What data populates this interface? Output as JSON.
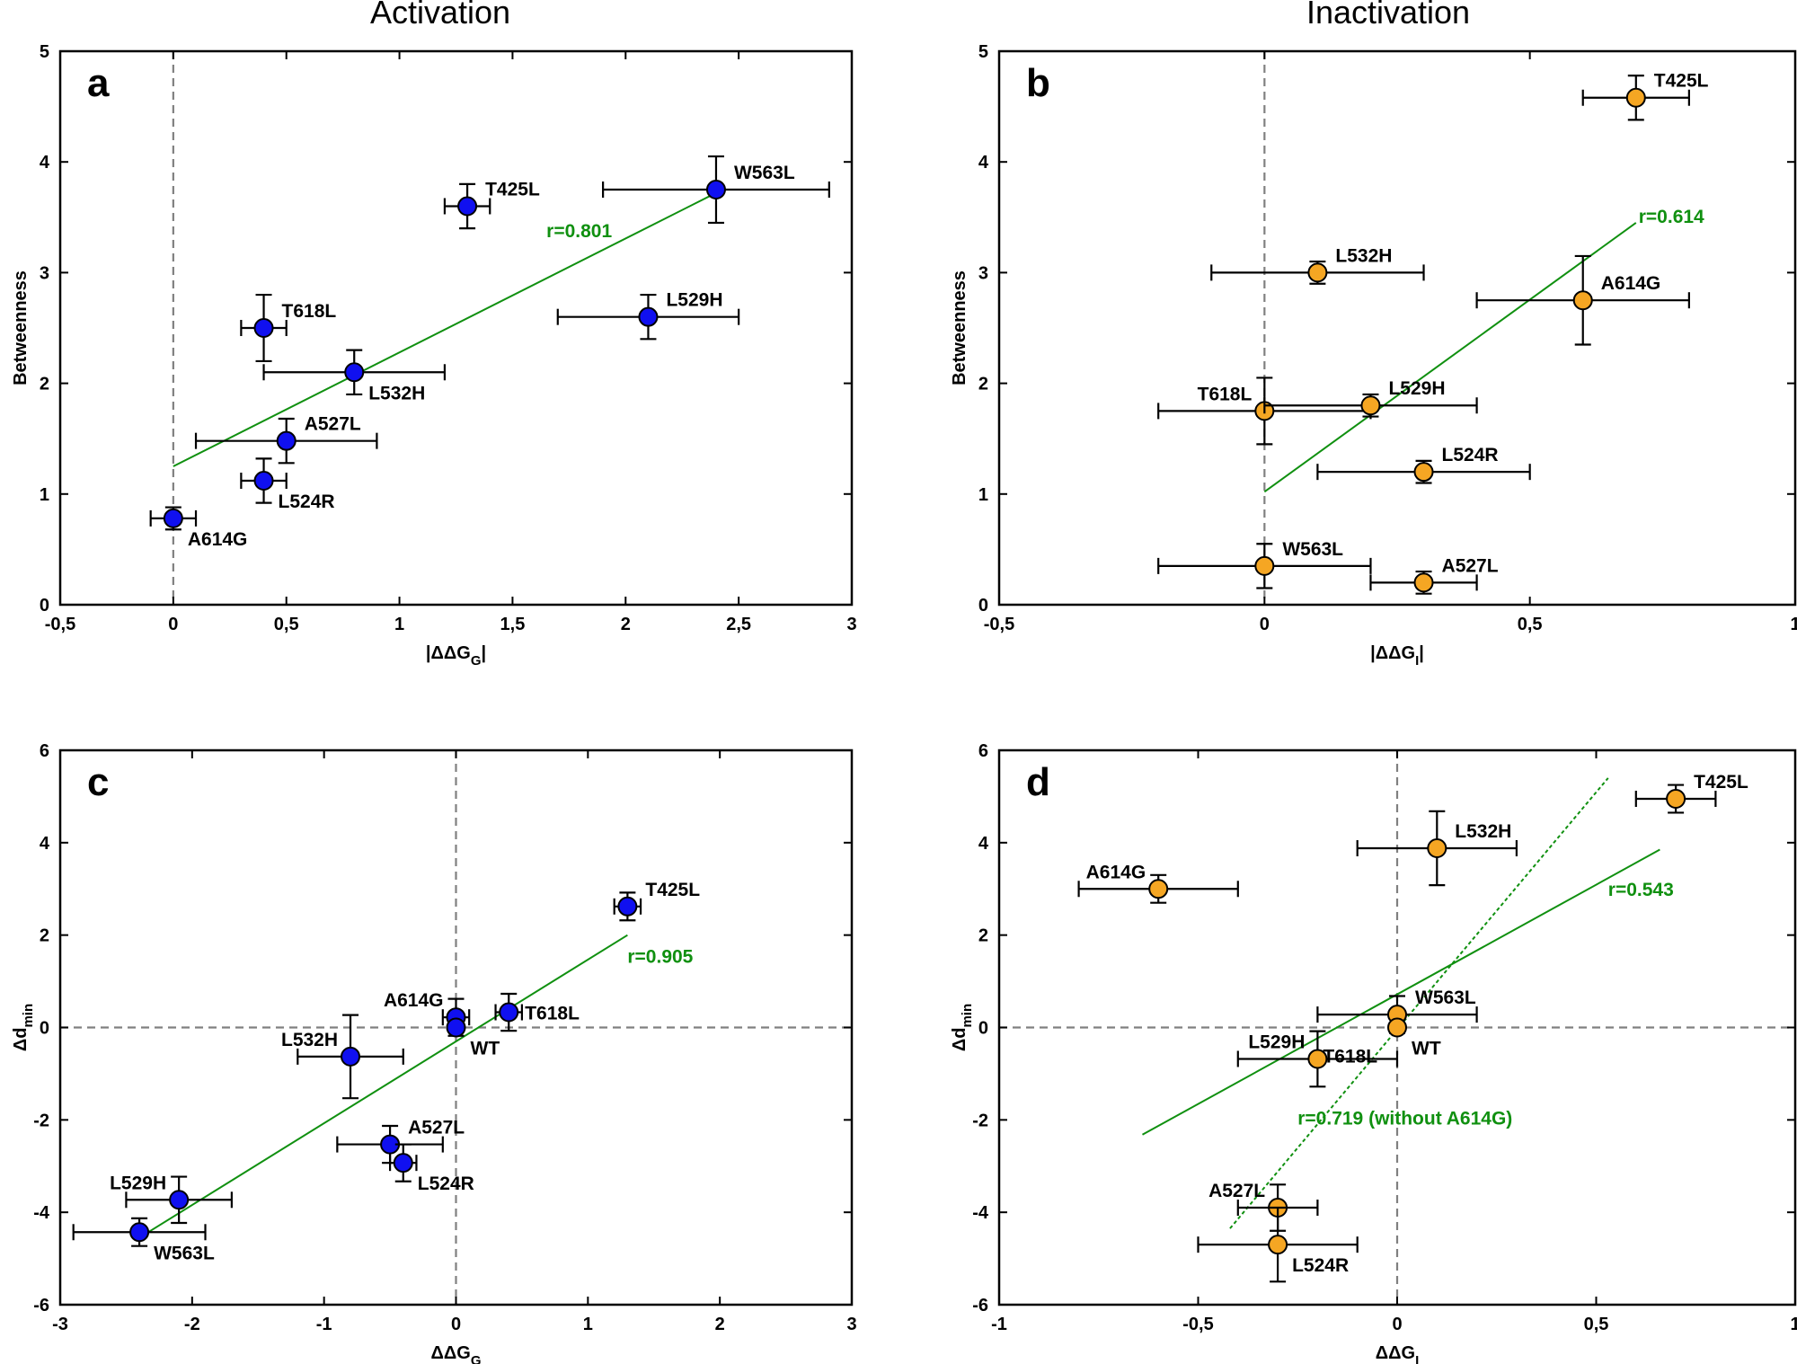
{
  "column_titles": {
    "left": "Activation",
    "right": "Inactivation"
  },
  "colors": {
    "blue": "#1010f0",
    "orange": "#f5a623",
    "green": "#109010",
    "zero_line": "#808080"
  },
  "chart_data": [
    {
      "type": "scatter",
      "panel": "a",
      "column": "left",
      "row": "top",
      "xlabel": "|ΔΔG",
      "xlabel_sub": "G",
      "xlabel_suffix": "|",
      "ylabel": "Betweenness",
      "ylabel_sub": "",
      "xlim": [
        -0.5,
        3
      ],
      "ylim": [
        0,
        5
      ],
      "xticks": [
        -0.5,
        0,
        0.5,
        1,
        1.5,
        2,
        2.5,
        3
      ],
      "xtick_labels": [
        "-0,5",
        "0",
        "0,5",
        "1",
        "1,5",
        "2",
        "2,5",
        "3"
      ],
      "yticks": [
        0,
        1,
        2,
        3,
        4,
        5
      ],
      "ytick_labels": [
        "0",
        "1",
        "2",
        "3",
        "4",
        "5"
      ],
      "zero_lines": {
        "vertical": true,
        "horizontal": false
      },
      "marker_color": "#1010f0",
      "points": [
        {
          "label": "W563L",
          "x": 2.4,
          "y": 3.75,
          "xerr": 0.5,
          "yerr": 0.3,
          "label_pos": "ne"
        },
        {
          "label": "T425L",
          "x": 1.3,
          "y": 3.6,
          "xerr": 0.1,
          "yerr": 0.2,
          "label_pos": "ne"
        },
        {
          "label": "L529H",
          "x": 2.1,
          "y": 2.6,
          "xerr": 0.4,
          "yerr": 0.2,
          "label_pos": "ne"
        },
        {
          "label": "T618L",
          "x": 0.4,
          "y": 2.5,
          "xerr": 0.1,
          "yerr": 0.3,
          "label_pos": "ne"
        },
        {
          "label": "L532H",
          "x": 0.8,
          "y": 2.1,
          "xerr": 0.4,
          "yerr": 0.2,
          "label_pos": "se"
        },
        {
          "label": "A527L",
          "x": 0.5,
          "y": 1.48,
          "xerr": 0.4,
          "yerr": 0.2,
          "label_pos": "ne"
        },
        {
          "label": "L524R",
          "x": 0.4,
          "y": 1.12,
          "xerr": 0.1,
          "yerr": 0.2,
          "label_pos": "se"
        },
        {
          "label": "A614G",
          "x": 0.0,
          "y": 0.78,
          "xerr": 0.1,
          "yerr": 0.1,
          "label_pos": "se"
        }
      ],
      "fits": [
        {
          "x": [
            0,
            2.4
          ],
          "y": [
            1.25,
            3.72
          ],
          "style": "solid",
          "label": "r=0.801",
          "label_at": [
            1.65,
            3.32
          ]
        }
      ]
    },
    {
      "type": "scatter",
      "panel": "b",
      "column": "right",
      "row": "top",
      "xlabel": "|ΔΔG",
      "xlabel_sub": "I",
      "xlabel_suffix": "|",
      "ylabel": "Betweenness",
      "ylabel_sub": "",
      "xlim": [
        -0.5,
        1
      ],
      "ylim": [
        0,
        5
      ],
      "xticks": [
        -0.5,
        0,
        0.5,
        1
      ],
      "xtick_labels": [
        "-0,5",
        "0",
        "0,5",
        "1"
      ],
      "yticks": [
        0,
        1,
        2,
        3,
        4,
        5
      ],
      "ytick_labels": [
        "0",
        "1",
        "2",
        "3",
        "4",
        "5"
      ],
      "zero_lines": {
        "vertical": true,
        "horizontal": false
      },
      "marker_color": "#f5a623",
      "points": [
        {
          "label": "T425L",
          "x": 0.7,
          "y": 4.58,
          "xerr": 0.1,
          "yerr": 0.2,
          "label_pos": "ne"
        },
        {
          "label": "L532H",
          "x": 0.1,
          "y": 3.0,
          "xerr": 0.2,
          "yerr": 0.1,
          "label_pos": "ne"
        },
        {
          "label": "A614G",
          "x": 0.6,
          "y": 2.75,
          "xerr": 0.2,
          "yerr": 0.4,
          "label_pos": "ne"
        },
        {
          "label": "T618L",
          "x": 0.0,
          "y": 1.75,
          "xerr": 0.2,
          "yerr": 0.3,
          "label_pos": "nw"
        },
        {
          "label": "L529H",
          "x": 0.2,
          "y": 1.8,
          "xerr": 0.2,
          "yerr": 0.1,
          "label_pos": "ne"
        },
        {
          "label": "L524R",
          "x": 0.3,
          "y": 1.2,
          "xerr": 0.2,
          "yerr": 0.1,
          "label_pos": "ne"
        },
        {
          "label": "W563L",
          "x": 0.0,
          "y": 0.35,
          "xerr": 0.2,
          "yerr": 0.2,
          "label_pos": "ne"
        },
        {
          "label": "A527L",
          "x": 0.3,
          "y": 0.2,
          "xerr": 0.1,
          "yerr": 0.1,
          "label_pos": "ne"
        }
      ],
      "fits": [
        {
          "x": [
            0,
            0.7
          ],
          "y": [
            1.02,
            3.45
          ],
          "style": "solid",
          "label": "r=0.614",
          "label_at": [
            0.705,
            3.45
          ]
        }
      ]
    },
    {
      "type": "scatter",
      "panel": "c",
      "column": "left",
      "row": "bottom",
      "xlabel": "ΔΔG",
      "xlabel_sub": "G",
      "xlabel_suffix": "",
      "ylabel": "Δd",
      "ylabel_sub": "min",
      "xlim": [
        -3,
        3
      ],
      "ylim": [
        -6,
        6
      ],
      "xticks": [
        -3,
        -2,
        -1,
        0,
        1,
        2,
        3
      ],
      "xtick_labels": [
        "-3",
        "-2",
        "-1",
        "0",
        "1",
        "2",
        "3"
      ],
      "yticks": [
        -6,
        -4,
        -2,
        0,
        2,
        4,
        6
      ],
      "ytick_labels": [
        "-6",
        "-4",
        "-2",
        "0",
        "2",
        "4",
        "6"
      ],
      "zero_lines": {
        "vertical": true,
        "horizontal": true
      },
      "marker_color": "#1010f0",
      "points": [
        {
          "label": "T425L",
          "x": 1.3,
          "y": 2.62,
          "xerr": 0.1,
          "yerr": 0.3,
          "label_pos": "ne"
        },
        {
          "label": "A614G",
          "x": 0.0,
          "y": 0.22,
          "xerr": 0.1,
          "yerr": 0.4,
          "label_pos": "nw"
        },
        {
          "label": "T618L",
          "x": 0.4,
          "y": 0.33,
          "xerr": 0.1,
          "yerr": 0.4,
          "label_pos": "e"
        },
        {
          "label": "WT",
          "x": 0.0,
          "y": 0.0,
          "xerr": 0,
          "yerr": 0,
          "label_pos": "se"
        },
        {
          "label": "L532H",
          "x": -0.8,
          "y": -0.63,
          "xerr": 0.4,
          "yerr": 0.9,
          "label_pos": "nw"
        },
        {
          "label": "A527L",
          "x": -0.5,
          "y": -2.53,
          "xerr": 0.4,
          "yerr": 0.4,
          "label_pos": "ne"
        },
        {
          "label": "L524R",
          "x": -0.4,
          "y": -2.93,
          "xerr": 0.1,
          "yerr": 0.4,
          "label_pos": "se"
        },
        {
          "label": "L529H",
          "x": -2.1,
          "y": -3.73,
          "xerr": 0.4,
          "yerr": 0.5,
          "label_pos": "nw"
        },
        {
          "label": "W563L",
          "x": -2.4,
          "y": -4.43,
          "xerr": 0.5,
          "yerr": 0.3,
          "label_pos": "se"
        }
      ],
      "fits": [
        {
          "x": [
            -2.4,
            1.3
          ],
          "y": [
            -4.55,
            2.0
          ],
          "style": "solid",
          "label": "r=0.905",
          "label_at": [
            1.3,
            1.4
          ]
        }
      ]
    },
    {
      "type": "scatter",
      "panel": "d",
      "column": "right",
      "row": "bottom",
      "xlabel": "ΔΔG",
      "xlabel_sub": "I",
      "xlabel_suffix": "",
      "ylabel": "Δd",
      "ylabel_sub": "min",
      "xlim": [
        -1,
        1
      ],
      "ylim": [
        -6,
        6
      ],
      "xticks": [
        -1,
        -0.5,
        0,
        0.5,
        1
      ],
      "xtick_labels": [
        "-1",
        "-0,5",
        "0",
        "0,5",
        "1"
      ],
      "yticks": [
        -6,
        -4,
        -2,
        0,
        2,
        4,
        6
      ],
      "ytick_labels": [
        "-6",
        "-4",
        "-2",
        "0",
        "2",
        "4",
        "6"
      ],
      "zero_lines": {
        "vertical": true,
        "horizontal": true
      },
      "marker_color": "#f5a623",
      "points": [
        {
          "label": "T425L",
          "x": 0.7,
          "y": 4.95,
          "xerr": 0.1,
          "yerr": 0.3,
          "label_pos": "ne"
        },
        {
          "label": "L532H",
          "x": 0.1,
          "y": 3.88,
          "xerr": 0.2,
          "yerr": 0.8,
          "label_pos": "ne"
        },
        {
          "label": "A614G",
          "x": -0.6,
          "y": 3.0,
          "xerr": 0.2,
          "yerr": 0.3,
          "label_pos": "nw"
        },
        {
          "label": "W563L",
          "x": 0.0,
          "y": 0.28,
          "xerr": 0.2,
          "yerr": 0.4,
          "label_pos": "ne"
        },
        {
          "label": "WT",
          "x": 0.0,
          "y": 0.0,
          "xerr": 0,
          "yerr": 0,
          "label_pos": "se"
        },
        {
          "label": "L529H",
          "x": -0.2,
          "y": -0.68,
          "xerr": 0.2,
          "yerr": 0.6,
          "label_pos": "nw"
        },
        {
          "label": "T618L",
          "x": -0.2,
          "y": -0.68,
          "xerr": 0,
          "yerr": 0,
          "label_pos": "ne"
        },
        {
          "label": "A527L",
          "x": -0.3,
          "y": -3.9,
          "xerr": 0.1,
          "yerr": 0.5,
          "label_pos": "nw"
        },
        {
          "label": "L524R",
          "x": -0.3,
          "y": -4.7,
          "xerr": 0.2,
          "yerr": 0.8,
          "label_pos": "se"
        }
      ],
      "fits": [
        {
          "x": [
            -0.64,
            0.66
          ],
          "y": [
            -2.32,
            3.85
          ],
          "style": "solid",
          "label": "r=0.543",
          "label_at": [
            0.53,
            2.85
          ]
        },
        {
          "x": [
            -0.42,
            0.53
          ],
          "y": [
            -4.35,
            5.4
          ],
          "style": "dotted",
          "label": "r=0.719 (without A614G)",
          "label_at": [
            -0.25,
            -2.1
          ]
        }
      ]
    }
  ]
}
